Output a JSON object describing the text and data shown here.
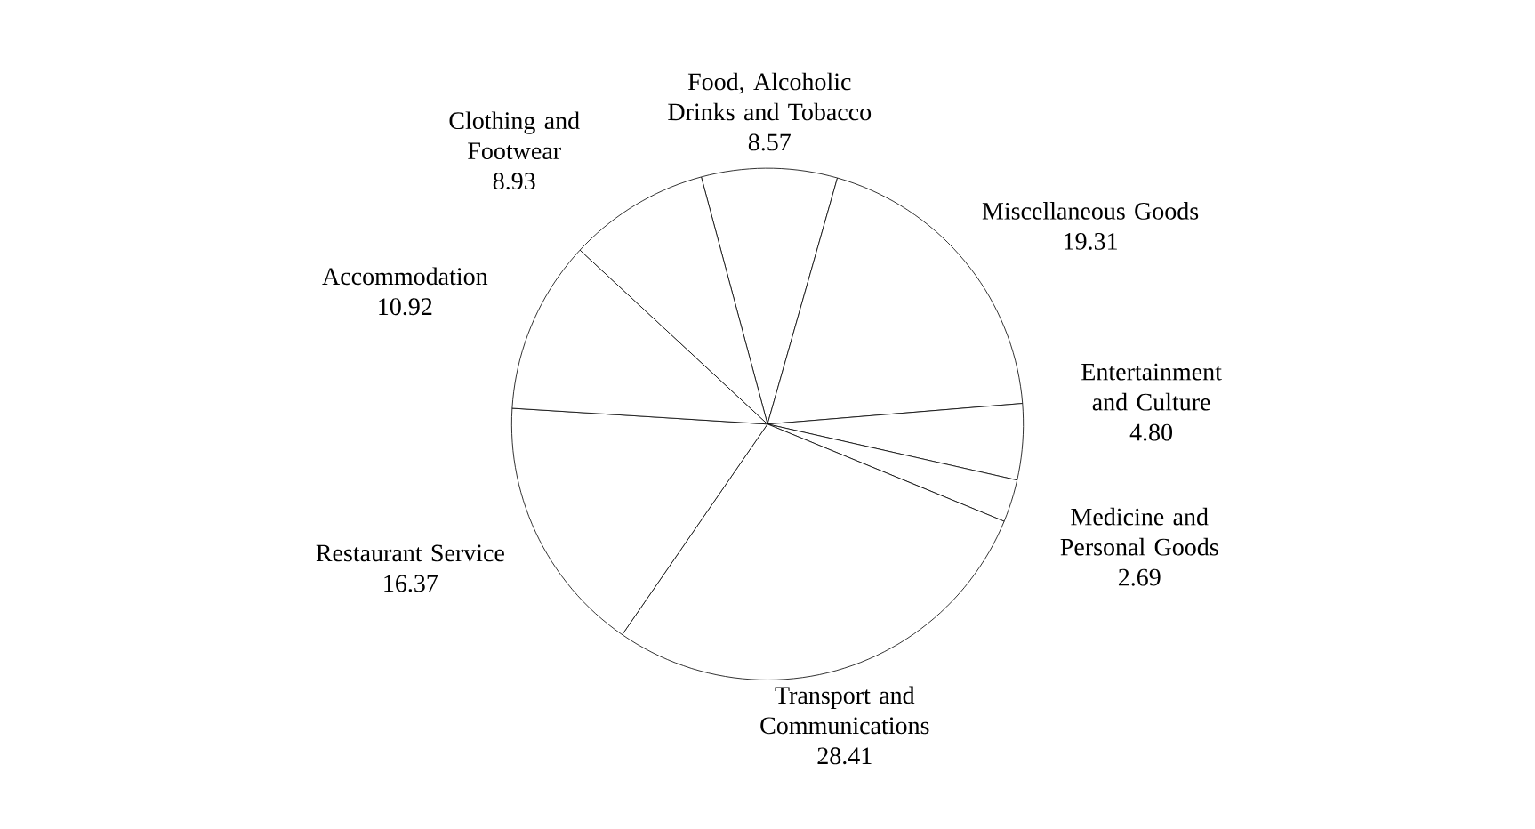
{
  "chart_data": {
    "type": "pie",
    "categories": [
      "Food, Alcoholic Drinks and Tobacco",
      "Miscellaneous Goods",
      "Entertainment and Culture",
      "Medicine and Personal Goods",
      "Transport and Communications",
      "Restaurant Service",
      "Accommodation",
      "Clothing and Footwear"
    ],
    "values": [
      8.57,
      19.31,
      4.8,
      2.69,
      28.41,
      16.37,
      10.92,
      8.93
    ],
    "value_labels": [
      "8.57",
      "19.31",
      "4.80",
      "2.69",
      "28.41",
      "16.37",
      "10.92",
      "8.93"
    ],
    "colors": [
      "#ffffff",
      "#ffffff",
      "#ffffff",
      "#ffffff",
      "#ffffff",
      "#ffffff",
      "#ffffff",
      "#ffffff"
    ]
  }
}
